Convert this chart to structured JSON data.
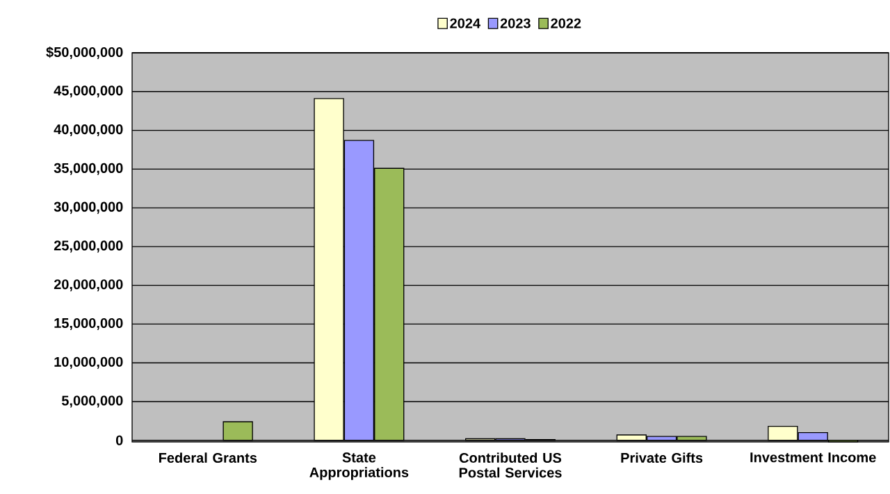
{
  "chart_data": {
    "type": "bar",
    "categories": [
      "Federal Grants",
      "State Appropriations",
      "Contributed US Postal Services",
      "Private Gifts",
      "Investment Income"
    ],
    "series": [
      {
        "name": "2024",
        "color": "#ffffcc",
        "values": [
          null,
          44100000,
          200000,
          700000,
          1800000
        ]
      },
      {
        "name": "2023",
        "color": "#9999ff",
        "values": [
          null,
          38700000,
          200000,
          500000,
          1000000
        ]
      },
      {
        "name": "2022",
        "color": "#9bbb59",
        "values": [
          2400000,
          35100000,
          100000,
          500000,
          -200000
        ]
      }
    ],
    "ylim": [
      -200000,
      50000000
    ],
    "yticks": [
      0,
      {
        "value": 5000000,
        "label": "5,000,000"
      },
      {
        "value": 10000000,
        "label": "10,000,000"
      },
      {
        "value": 15000000,
        "label": "15,000,000"
      },
      {
        "value": 20000000,
        "label": "20,000,000"
      },
      {
        "value": 25000000,
        "label": "25,000,000"
      },
      {
        "value": 30000000,
        "label": "30,000,000"
      },
      {
        "value": 35000000,
        "label": "35,000,000"
      },
      {
        "value": 40000000,
        "label": "40,000,000"
      },
      {
        "value": 45000000,
        "label": "45,000,000"
      },
      {
        "value": 50000000,
        "label": "$50,000,000"
      }
    ],
    "grid": "y",
    "legend": "top"
  }
}
